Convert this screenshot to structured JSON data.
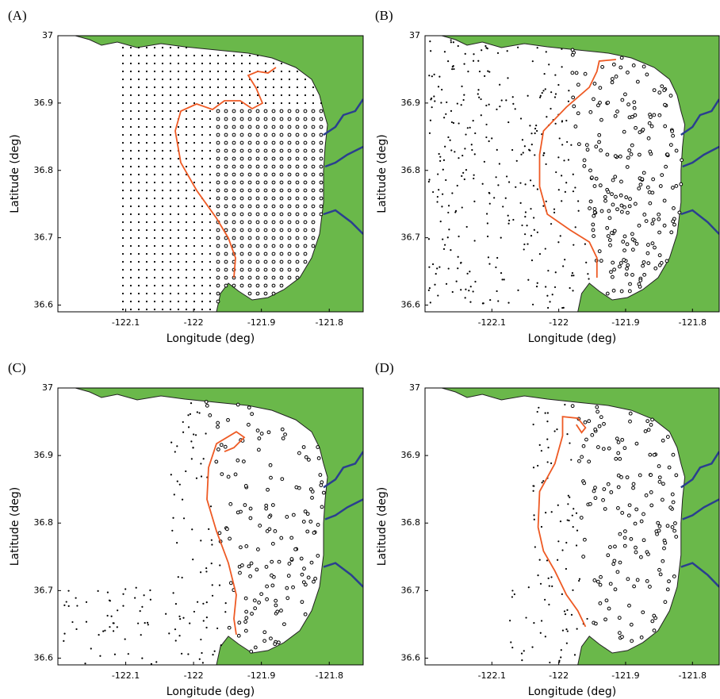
{
  "panels": [
    {
      "label": "(A)",
      "xlabel": "Longitude (deg)",
      "ylabel": "Latitude (deg)",
      "xlim": [
        -122.2,
        -121.75
      ],
      "ylim": [
        36.59,
        37.0
      ],
      "xticks": [
        -122.1,
        -122,
        -121.9,
        -121.8
      ],
      "yticks": [
        36.6,
        36.7,
        36.8,
        36.9,
        37
      ]
    },
    {
      "label": "(B)",
      "xlabel": "Longitude (deg)",
      "ylabel": "Latitude (deg)",
      "xlim": [
        -122.2,
        -121.76
      ],
      "ylim": [
        36.59,
        37.0
      ],
      "xticks": [
        -122.1,
        -122,
        -121.9,
        -121.8
      ],
      "yticks": [
        36.6,
        36.7,
        36.8,
        36.9,
        37
      ]
    },
    {
      "label": "(C)",
      "xlabel": "Longitude (deg)",
      "ylabel": "Latitude (deg)",
      "xlim": [
        -122.2,
        -121.75
      ],
      "ylim": [
        36.59,
        37.0
      ],
      "xticks": [
        -122.1,
        -122,
        -121.9,
        -121.8
      ],
      "yticks": [
        36.6,
        36.7,
        36.8,
        36.9,
        37
      ]
    },
    {
      "label": "(D)",
      "xlabel": "Longitude (deg)",
      "ylabel": "Latitude (deg)",
      "xlim": [
        -122.2,
        -121.76
      ],
      "ylim": [
        36.59,
        37.0
      ],
      "xticks": [
        -122.1,
        -122,
        -121.9,
        -121.8
      ],
      "yticks": [
        36.6,
        36.7,
        36.8,
        36.9,
        37
      ]
    }
  ]
}
